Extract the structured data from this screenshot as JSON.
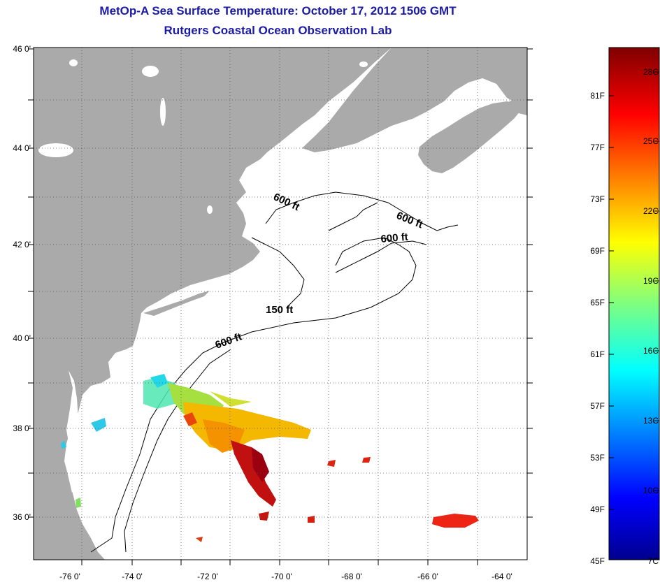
{
  "header": {
    "title": "MetOp-A Sea Surface Temperature:  October 17, 2012 1506 GMT",
    "subtitle": "Rutgers Coastal Ocean Observation Lab"
  },
  "map": {
    "lat_labels": [
      "46 0'",
      "44 0'",
      "42 0'",
      "40 0'",
      "38 0'",
      "36 0'"
    ],
    "lon_labels": [
      "-76 0'",
      "-74 0'",
      "-72 0'",
      "-70 0'",
      "-68 0'",
      "-66 0'",
      "-64 0'"
    ],
    "depth_labels": [
      "600 ft",
      "600 ft",
      "600 ft",
      "150 ft",
      "600 ft"
    ],
    "land_color": "#aaaaaa",
    "ocean_color": "#ffffff"
  },
  "colorbar": {
    "fahrenheit_labels": [
      "81F",
      "77F",
      "73F",
      "69F",
      "65F",
      "61F",
      "57F",
      "53F",
      "49F",
      "45F"
    ],
    "celsius_labels": [
      "28C",
      "25C",
      "22C",
      "19C",
      "16C",
      "13C",
      "10C",
      "7C"
    ]
  }
}
